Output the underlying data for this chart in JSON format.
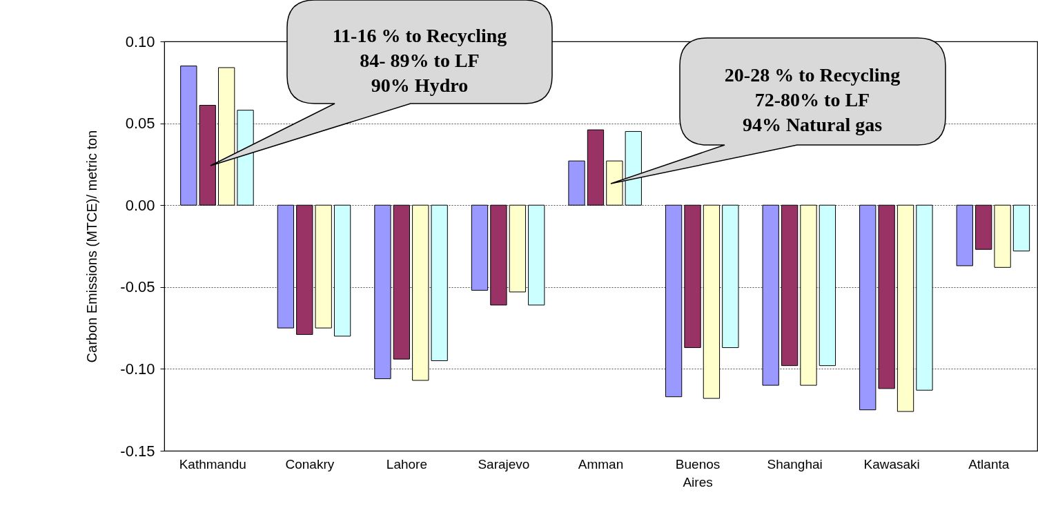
{
  "chart_data": {
    "type": "bar",
    "ylabel": "Carbon Emissions (MTCE)/ metric ton",
    "categories": [
      "Kathmandu",
      "Conakry",
      "Lahore",
      "Sarajevo",
      "Amman",
      "Buenos Aires",
      "Shanghai",
      "Kawasaki",
      "Atlanta"
    ],
    "series": [
      {
        "color": "#9999ff",
        "values": [
          0.085,
          -0.075,
          -0.106,
          -0.052,
          0.027,
          -0.117,
          -0.11,
          -0.125,
          -0.037
        ]
      },
      {
        "color": "#993366",
        "values": [
          0.061,
          -0.079,
          -0.094,
          -0.061,
          0.046,
          -0.087,
          -0.098,
          -0.112,
          -0.027
        ]
      },
      {
        "color": "#ffffcc",
        "values": [
          0.084,
          -0.075,
          -0.107,
          -0.053,
          0.027,
          -0.118,
          -0.11,
          -0.126,
          -0.038
        ]
      },
      {
        "color": "#ccffff",
        "values": [
          0.058,
          -0.08,
          -0.095,
          -0.061,
          0.045,
          -0.087,
          -0.098,
          -0.113,
          -0.028
        ]
      }
    ],
    "ylim": [
      -0.15,
      0.1
    ],
    "yticks": [
      {
        "value": -0.15,
        "label": "-0.15"
      },
      {
        "value": -0.1,
        "label": "-0.10"
      },
      {
        "value": -0.05,
        "label": "-0.05"
      },
      {
        "value": 0,
        "label": "0.00"
      },
      {
        "value": 0.05,
        "label": "0.05"
      },
      {
        "value": 0.1,
        "label": "0.10"
      }
    ],
    "grid": "y",
    "annotations": [
      "11-16 % to Recycling\n84- 89% to LF\n90% Hydro",
      "20-28 % to Recycling\n72-80% to LF\n94% Natural gas"
    ]
  }
}
